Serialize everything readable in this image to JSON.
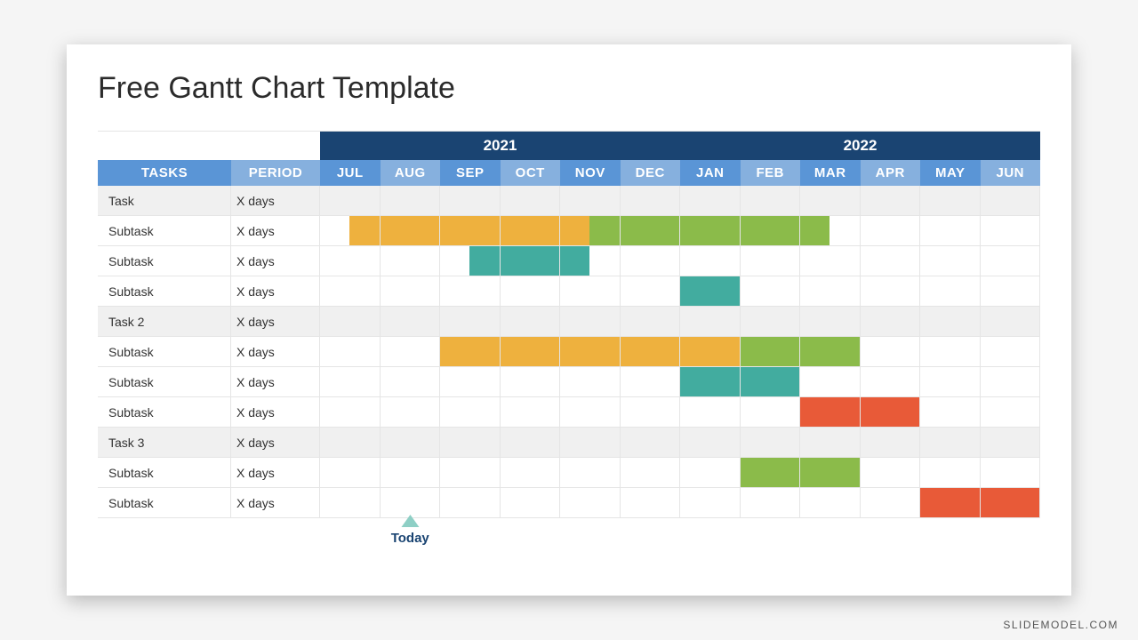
{
  "title": "Free Gantt Chart Template",
  "watermark": "SLIDEMODEL.COM",
  "colors": {
    "year_bg": "#1a4472",
    "month_header_bg": "#5a95d6",
    "month_header_alt_bg": "#86b0de",
    "tasks_header_bg": "#5a95d6",
    "period_header_bg": "#86b0de",
    "row_shade": "#f0f0f0",
    "grid": "#e5e5e5",
    "orange": "#eeb13e",
    "green": "#8bbb4a",
    "teal": "#42ac9f",
    "red": "#e85a38",
    "today_triangle": "#8ecfc5",
    "today_text": "#1a4472"
  },
  "years": [
    {
      "label": "2021",
      "span": 6
    },
    {
      "label": "2022",
      "span": 6
    }
  ],
  "header": {
    "tasks": "TASKS",
    "period": "PERIOD",
    "months": [
      "JUL",
      "AUG",
      "SEP",
      "OCT",
      "NOV",
      "DEC",
      "JAN",
      "FEB",
      "MAR",
      "APR",
      "MAY",
      "JUN"
    ]
  },
  "today": {
    "label": "Today",
    "month_index": 1,
    "half": 1
  },
  "rows": [
    {
      "name": "Task",
      "period": "X days",
      "shaded": true,
      "bars": []
    },
    {
      "name": "Subtask",
      "period": "X days",
      "shaded": false,
      "bars": [
        {
          "start": 0.5,
          "end": 4.5,
          "color": "#eeb13e"
        },
        {
          "start": 4.5,
          "end": 8.5,
          "color": "#8bbb4a"
        }
      ]
    },
    {
      "name": "Subtask",
      "period": "X days",
      "shaded": false,
      "bars": [
        {
          "start": 2.5,
          "end": 4.5,
          "color": "#42ac9f"
        }
      ]
    },
    {
      "name": "Subtask",
      "period": "X days",
      "shaded": false,
      "bars": [
        {
          "start": 6.0,
          "end": 7.0,
          "color": "#42ac9f"
        }
      ]
    },
    {
      "name": "Task 2",
      "period": "X days",
      "shaded": true,
      "bars": []
    },
    {
      "name": "Subtask",
      "period": "X days",
      "shaded": false,
      "bars": [
        {
          "start": 2.0,
          "end": 7.0,
          "color": "#eeb13e"
        },
        {
          "start": 7.0,
          "end": 9.0,
          "color": "#8bbb4a"
        }
      ]
    },
    {
      "name": "Subtask",
      "period": "X days",
      "shaded": false,
      "bars": [
        {
          "start": 6.0,
          "end": 8.0,
          "color": "#42ac9f"
        }
      ]
    },
    {
      "name": "Subtask",
      "period": "X days",
      "shaded": false,
      "bars": [
        {
          "start": 8.0,
          "end": 10.0,
          "color": "#e85a38"
        }
      ]
    },
    {
      "name": "Task 3",
      "period": "X days",
      "shaded": true,
      "bars": []
    },
    {
      "name": "Subtask",
      "period": "X days",
      "shaded": false,
      "bars": [
        {
          "start": 7.0,
          "end": 9.0,
          "color": "#8bbb4a"
        }
      ]
    },
    {
      "name": "Subtask",
      "period": "X days",
      "shaded": false,
      "bars": [
        {
          "start": 10.0,
          "end": 12.0,
          "color": "#e85a38"
        }
      ]
    }
  ]
}
